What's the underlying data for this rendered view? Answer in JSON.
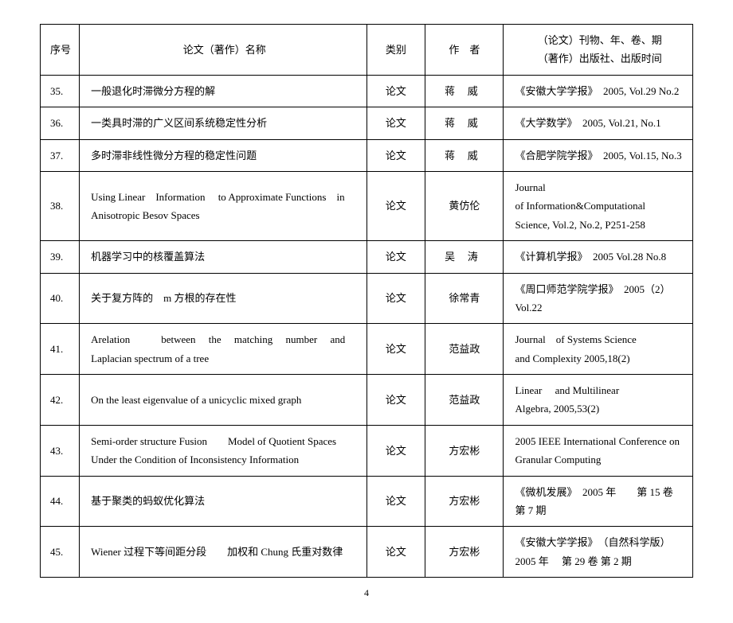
{
  "header": {
    "num": "序号",
    "title": "论文（著作）名称",
    "type": "类别",
    "author": "作　者",
    "journal_line1": "（论文）刊物、年、卷、期",
    "journal_line2": "（著作）出版社、出版时间"
  },
  "rows": [
    {
      "num": "35.",
      "title": "一般退化时滞微分方程的解",
      "type": "论文",
      "author": "蒋威",
      "author_spaced": true,
      "journal": "《安徽大学学报》　2005, Vol.29 No.2"
    },
    {
      "num": "36.",
      "title": "一类具时滞的广义区间系统稳定性分析",
      "type": "论文",
      "author": "蒋威",
      "author_spaced": true,
      "journal": "《大学数学》　2005, Vol.21, No.1"
    },
    {
      "num": "37.",
      "title": "多时滞非线性微分方程的稳定性问题",
      "type": "论文",
      "author": "蒋威",
      "author_spaced": true,
      "journal": "《合肥学院学报》　2005, Vol.15, No.3"
    },
    {
      "num": "38.",
      "title": "Using Linear　Information　 to Approximate Functions　in Anisotropic Besov Spaces",
      "type": "论文",
      "author": "黄仿伦",
      "author_spaced": false,
      "journal": "Journal　　　　　　　　　　　　　of Information&Computational　　　Science, Vol.2, No.2, P251-258"
    },
    {
      "num": "39.",
      "title": "机器学习中的核覆盖算法",
      "type": "论文",
      "author": "吴涛",
      "author_spaced": true,
      "journal": "《计算机学报》　2005 Vol.28 No.8"
    },
    {
      "num": "40.",
      "title": "关于复方阵的　m 方根的存在性",
      "type": "论文",
      "author": "徐常青",
      "author_spaced": false,
      "journal": "《周口师范学院学报》　2005（2）Vol.22"
    },
    {
      "num": "41.",
      "title": "Arelation　　　between　 the　 matching　 number　 and Laplacian spectrum of a tree",
      "type": "论文",
      "author": "范益政",
      "author_spaced": false,
      "journal": "Journal　of Systems Science　　　　and Complexity\n2005,18(2)"
    },
    {
      "num": "42.",
      "title": "On the least eigenvalue of a unicyclic mixed graph",
      "type": "论文",
      "author": "范益政",
      "author_spaced": false,
      "journal": "Linear　 and Multilinear　　　　Algebra, 2005,53(2)"
    },
    {
      "num": "43.",
      "title": "Semi-order structure Fusion　　Model of Quotient Spaces Under the Condition of Inconsistency Information",
      "type": "论文",
      "author": "方宏彬",
      "author_spaced": false,
      "journal": "2005 IEEE International Conference on Granular Computing"
    },
    {
      "num": "44.",
      "title": "基于聚类的蚂蚁优化算法",
      "type": "论文",
      "author": "方宏彬",
      "author_spaced": false,
      "journal": "《微机发展》　2005 年　　第 15 卷　　第 7 期"
    },
    {
      "num": "45.",
      "title": "Wiener 过程下等间距分段　　加权和 Chung 氏重对数律",
      "type": "论文",
      "author": "方宏彬",
      "author_spaced": false,
      "journal": "《安徽大学学报》　（自然科学版）　2005 年　 第 29 卷 第 2 期"
    }
  ],
  "page_number": "4"
}
